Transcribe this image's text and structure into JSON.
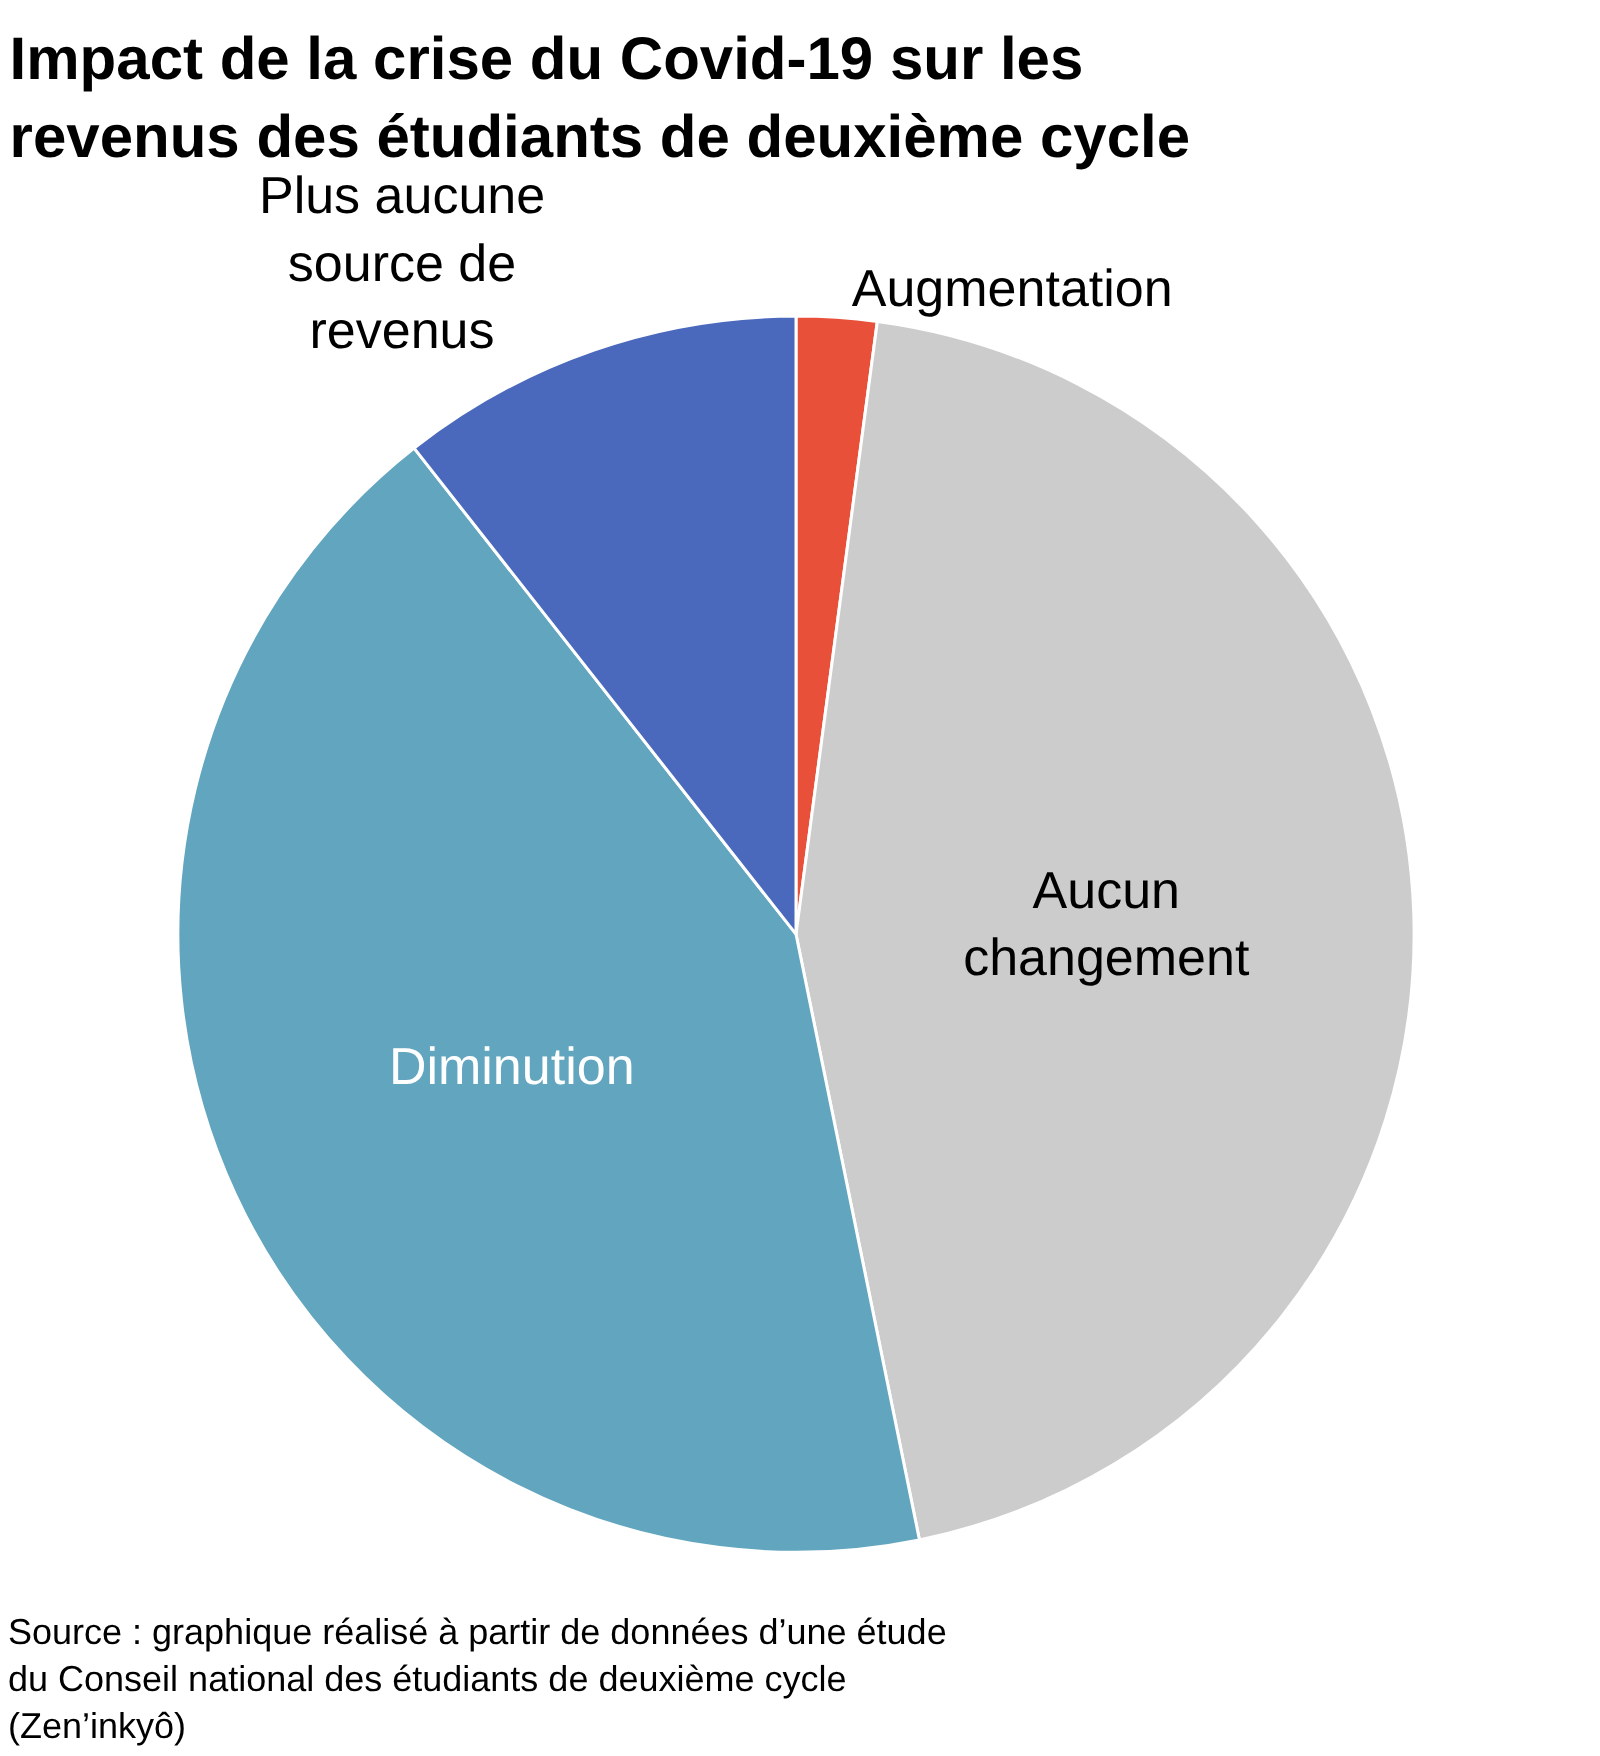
{
  "chart_data": {
    "type": "pie",
    "title": "Impact de la crise du Covid-19 sur les revenus des étudiants de deuxième cycle",
    "categories": [
      "Augmentation",
      "Aucun changement",
      "Diminution",
      "Plus aucune source de revenus"
    ],
    "values": [
      2.1,
      44.7,
      42.6,
      10.6
    ],
    "colors": [
      "#e8503a",
      "#cccccc",
      "#62a5be",
      "#4a69bd"
    ],
    "legend": false,
    "annotations": [
      "Source : graphique réalisé à partir de données d’une étude du Conseil national des étudiants de deuxième cycle (Zen’inkyô)"
    ]
  }
}
